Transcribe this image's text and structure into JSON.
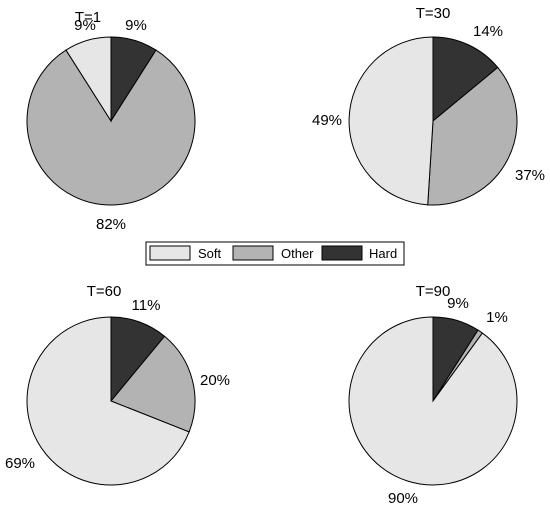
{
  "chart_data": [
    {
      "type": "pie",
      "title": "T=1",
      "categories": [
        "Hard",
        "Other",
        "Soft"
      ],
      "values": [
        9,
        82,
        9
      ],
      "labels": [
        "9%",
        "82%",
        "9%"
      ]
    },
    {
      "type": "pie",
      "title": "T=30",
      "categories": [
        "Hard",
        "Other",
        "Soft"
      ],
      "values": [
        14,
        37,
        49
      ],
      "labels": [
        "14%",
        "37%",
        "49%"
      ]
    },
    {
      "type": "pie",
      "title": "T=60",
      "categories": [
        "Hard",
        "Other",
        "Soft"
      ],
      "values": [
        11,
        20,
        69
      ],
      "labels": [
        "11%",
        "20%",
        "69%"
      ]
    },
    {
      "type": "pie",
      "title": "T=90",
      "categories": [
        "Hard",
        "Other",
        "Soft"
      ],
      "values": [
        9,
        1,
        90
      ],
      "labels": [
        "9%",
        "1%",
        "90%"
      ]
    }
  ],
  "legend": {
    "placement": "center",
    "entries": [
      {
        "name": "Soft",
        "color": "#e6e6e6"
      },
      {
        "name": "Other",
        "color": "#b3b3b3"
      },
      {
        "name": "Hard",
        "color": "#333333"
      }
    ]
  },
  "colors": {
    "Hard": "#333333",
    "Other": "#b3b3b3",
    "Soft": "#e6e6e6"
  }
}
